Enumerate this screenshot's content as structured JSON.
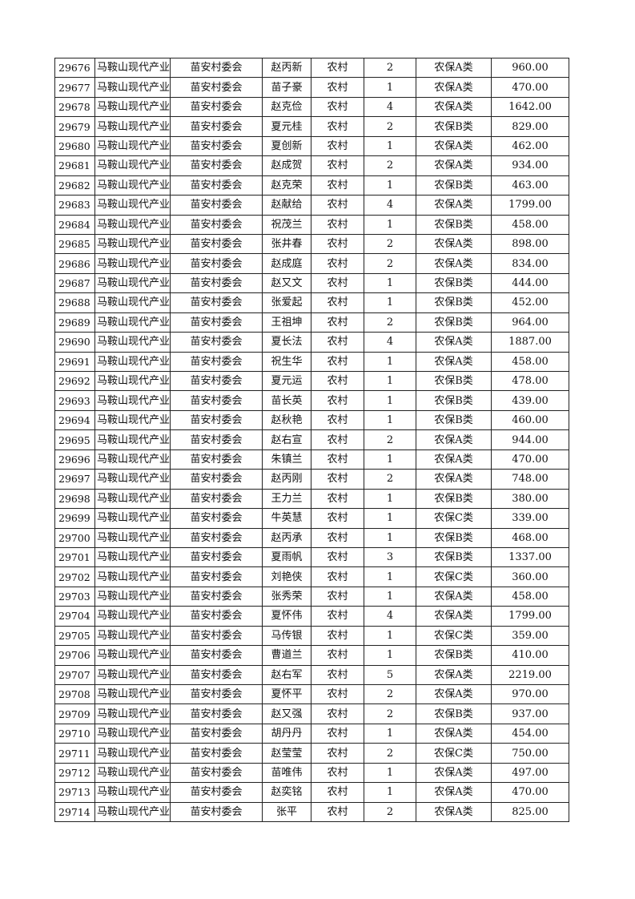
{
  "table": {
    "rows": [
      [
        "29676",
        "马鞍山现代产业",
        "苗安村委会",
        "赵丙新",
        "农村",
        "2",
        "农保A类",
        "960.00"
      ],
      [
        "29677",
        "马鞍山现代产业",
        "苗安村委会",
        "苗子豪",
        "农村",
        "1",
        "农保A类",
        "470.00"
      ],
      [
        "29678",
        "马鞍山现代产业",
        "苗安村委会",
        "赵克俭",
        "农村",
        "4",
        "农保A类",
        "1642.00"
      ],
      [
        "29679",
        "马鞍山现代产业",
        "苗安村委会",
        "夏元桂",
        "农村",
        "2",
        "农保B类",
        "829.00"
      ],
      [
        "29680",
        "马鞍山现代产业",
        "苗安村委会",
        "夏创新",
        "农村",
        "1",
        "农保A类",
        "462.00"
      ],
      [
        "29681",
        "马鞍山现代产业",
        "苗安村委会",
        "赵成贺",
        "农村",
        "2",
        "农保A类",
        "934.00"
      ],
      [
        "29682",
        "马鞍山现代产业",
        "苗安村委会",
        "赵克荣",
        "农村",
        "1",
        "农保B类",
        "463.00"
      ],
      [
        "29683",
        "马鞍山现代产业",
        "苗安村委会",
        "赵献给",
        "农村",
        "4",
        "农保A类",
        "1799.00"
      ],
      [
        "29684",
        "马鞍山现代产业",
        "苗安村委会",
        "祝茂兰",
        "农村",
        "1",
        "农保B类",
        "458.00"
      ],
      [
        "29685",
        "马鞍山现代产业",
        "苗安村委会",
        "张井春",
        "农村",
        "2",
        "农保A类",
        "898.00"
      ],
      [
        "29686",
        "马鞍山现代产业",
        "苗安村委会",
        "赵成庭",
        "农村",
        "2",
        "农保A类",
        "834.00"
      ],
      [
        "29687",
        "马鞍山现代产业",
        "苗安村委会",
        "赵又文",
        "农村",
        "1",
        "农保B类",
        "444.00"
      ],
      [
        "29688",
        "马鞍山现代产业",
        "苗安村委会",
        "张爱起",
        "农村",
        "1",
        "农保B类",
        "452.00"
      ],
      [
        "29689",
        "马鞍山现代产业",
        "苗安村委会",
        "王祖坤",
        "农村",
        "2",
        "农保B类",
        "964.00"
      ],
      [
        "29690",
        "马鞍山现代产业",
        "苗安村委会",
        "夏长法",
        "农村",
        "4",
        "农保A类",
        "1887.00"
      ],
      [
        "29691",
        "马鞍山现代产业",
        "苗安村委会",
        "祝生华",
        "农村",
        "1",
        "农保A类",
        "458.00"
      ],
      [
        "29692",
        "马鞍山现代产业",
        "苗安村委会",
        "夏元运",
        "农村",
        "1",
        "农保B类",
        "478.00"
      ],
      [
        "29693",
        "马鞍山现代产业",
        "苗安村委会",
        "苗长英",
        "农村",
        "1",
        "农保B类",
        "439.00"
      ],
      [
        "29694",
        "马鞍山现代产业",
        "苗安村委会",
        "赵秋艳",
        "农村",
        "1",
        "农保B类",
        "460.00"
      ],
      [
        "29695",
        "马鞍山现代产业",
        "苗安村委会",
        "赵右宣",
        "农村",
        "2",
        "农保A类",
        "944.00"
      ],
      [
        "29696",
        "马鞍山现代产业",
        "苗安村委会",
        "朱镇兰",
        "农村",
        "1",
        "农保A类",
        "470.00"
      ],
      [
        "29697",
        "马鞍山现代产业",
        "苗安村委会",
        "赵丙刚",
        "农村",
        "2",
        "农保A类",
        "748.00"
      ],
      [
        "29698",
        "马鞍山现代产业",
        "苗安村委会",
        "王力兰",
        "农村",
        "1",
        "农保B类",
        "380.00"
      ],
      [
        "29699",
        "马鞍山现代产业",
        "苗安村委会",
        "牛英慧",
        "农村",
        "1",
        "农保C类",
        "339.00"
      ],
      [
        "29700",
        "马鞍山现代产业",
        "苗安村委会",
        "赵丙承",
        "农村",
        "1",
        "农保B类",
        "468.00"
      ],
      [
        "29701",
        "马鞍山现代产业",
        "苗安村委会",
        "夏雨帆",
        "农村",
        "3",
        "农保B类",
        "1337.00"
      ],
      [
        "29702",
        "马鞍山现代产业",
        "苗安村委会",
        "刘艳侠",
        "农村",
        "1",
        "农保C类",
        "360.00"
      ],
      [
        "29703",
        "马鞍山现代产业",
        "苗安村委会",
        "张秀荣",
        "农村",
        "1",
        "农保A类",
        "458.00"
      ],
      [
        "29704",
        "马鞍山现代产业",
        "苗安村委会",
        "夏怀伟",
        "农村",
        "4",
        "农保A类",
        "1799.00"
      ],
      [
        "29705",
        "马鞍山现代产业",
        "苗安村委会",
        "马传银",
        "农村",
        "1",
        "农保C类",
        "359.00"
      ],
      [
        "29706",
        "马鞍山现代产业",
        "苗安村委会",
        "曹道兰",
        "农村",
        "1",
        "农保B类",
        "410.00"
      ],
      [
        "29707",
        "马鞍山现代产业",
        "苗安村委会",
        "赵右军",
        "农村",
        "5",
        "农保A类",
        "2219.00"
      ],
      [
        "29708",
        "马鞍山现代产业",
        "苗安村委会",
        "夏怀平",
        "农村",
        "2",
        "农保A类",
        "970.00"
      ],
      [
        "29709",
        "马鞍山现代产业",
        "苗安村委会",
        "赵又强",
        "农村",
        "2",
        "农保B类",
        "937.00"
      ],
      [
        "29710",
        "马鞍山现代产业",
        "苗安村委会",
        "胡丹丹",
        "农村",
        "1",
        "农保A类",
        "454.00"
      ],
      [
        "29711",
        "马鞍山现代产业",
        "苗安村委会",
        "赵莹莹",
        "农村",
        "2",
        "农保C类",
        "750.00"
      ],
      [
        "29712",
        "马鞍山现代产业",
        "苗安村委会",
        "苗唯伟",
        "农村",
        "1",
        "农保A类",
        "497.00"
      ],
      [
        "29713",
        "马鞍山现代产业",
        "苗安村委会",
        "赵奕铭",
        "农村",
        "1",
        "农保A类",
        "470.00"
      ],
      [
        "29714",
        "马鞍山现代产业",
        "苗安村委会",
        "张平",
        "农村",
        "2",
        "农保A类",
        "825.00"
      ]
    ]
  }
}
